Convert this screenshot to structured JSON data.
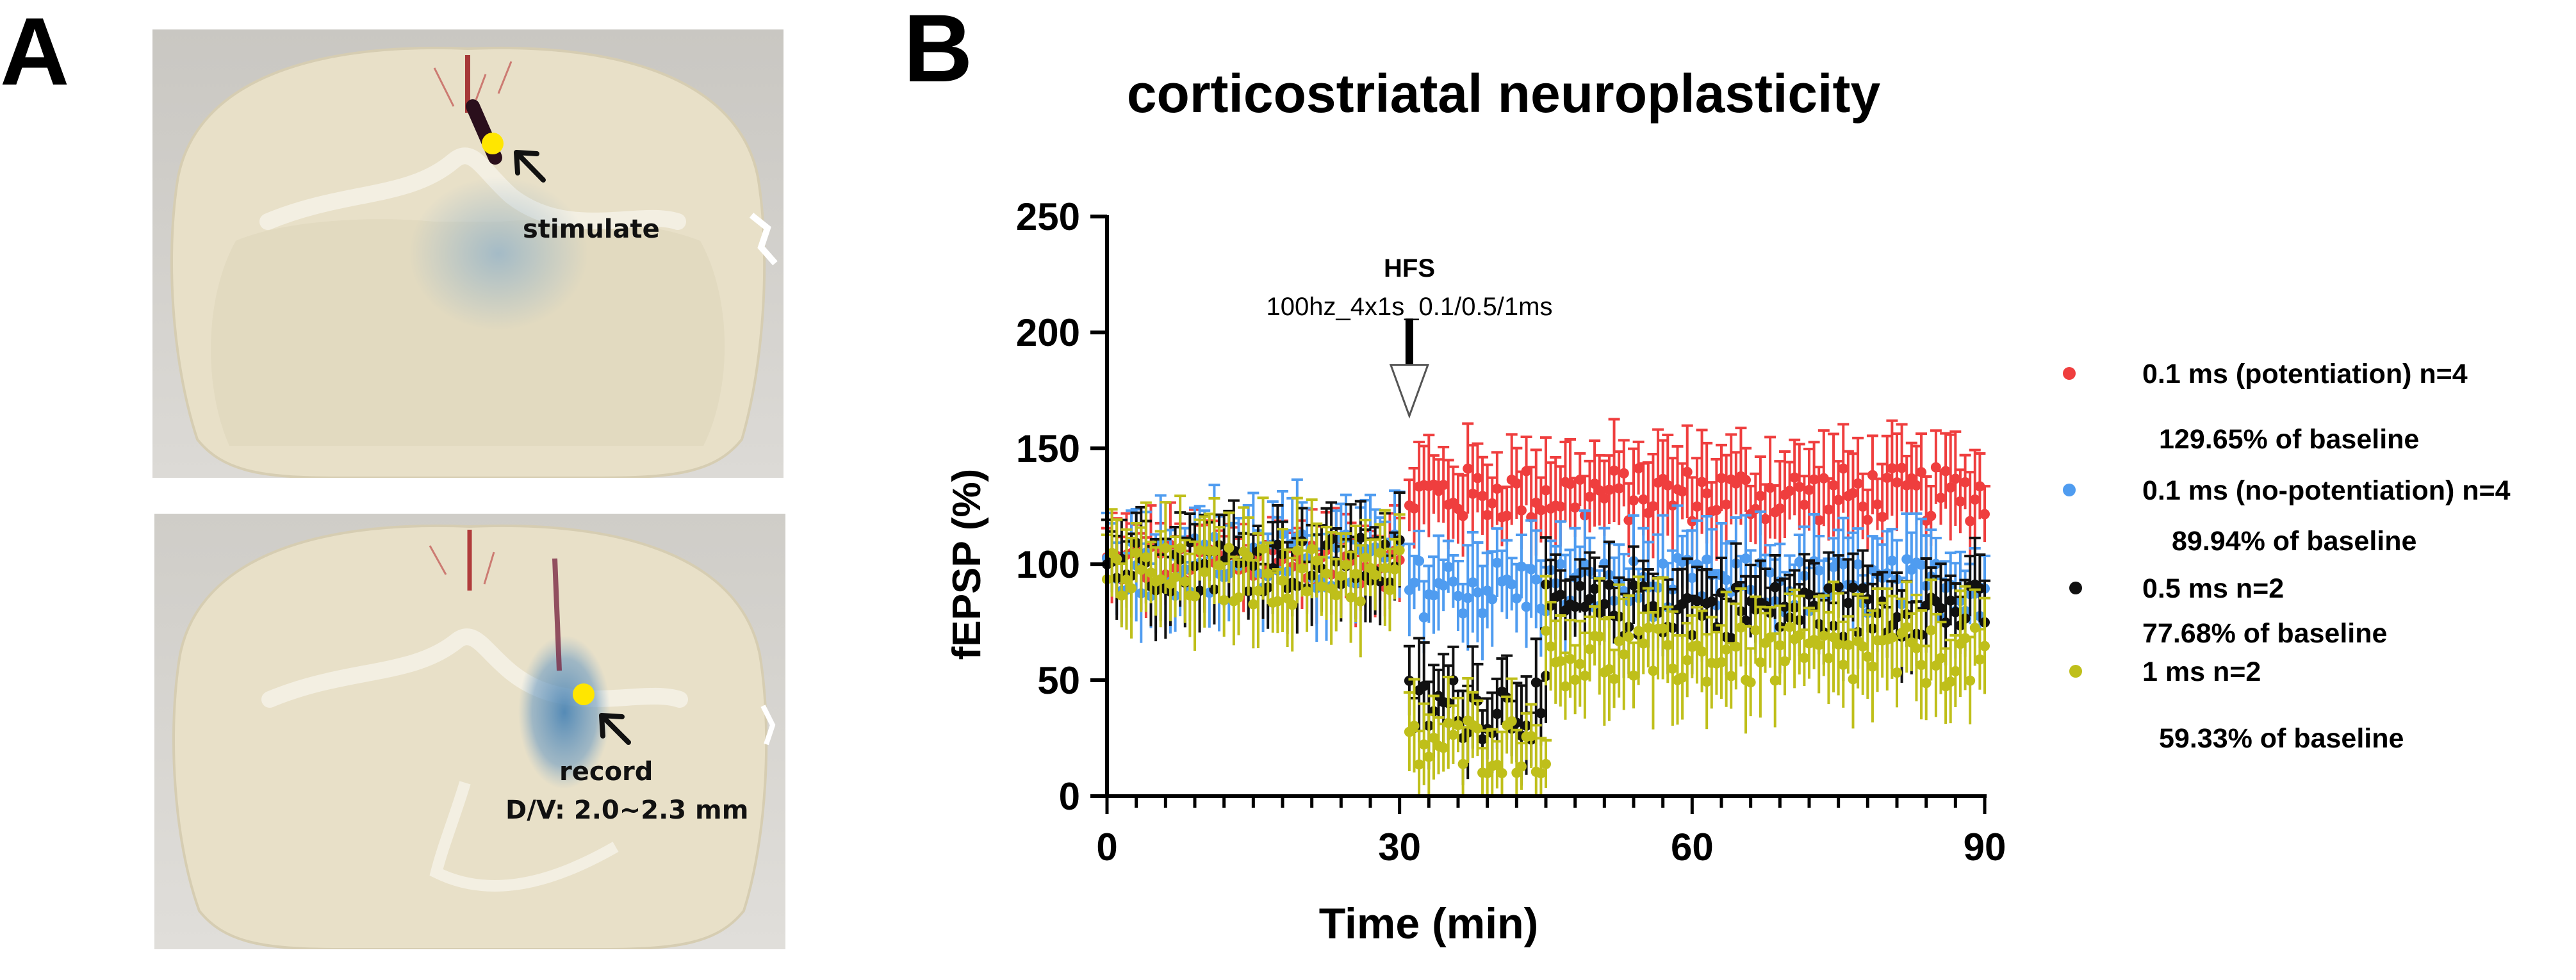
{
  "panel_a": {
    "letter": "A",
    "top_image": {
      "label": "stimulate"
    },
    "bottom_image": {
      "label_line1": "record",
      "label_line2": "D/V: 2.0~2.3 mm"
    }
  },
  "panel_b": {
    "letter": "B"
  },
  "colors": {
    "potentiation_01ms": "#ef3e3e",
    "no_potentiation_01ms": "#4f9cf0",
    "ms05": "#111111",
    "ms1": "#bfbf1a",
    "stim_site_marker": "#ffe600",
    "tissue": "#e7e0c8",
    "dye": "#5d8fb8"
  },
  "chart_data": {
    "type": "scatter",
    "title": "corticostriatal neuroplasticity",
    "xlabel": "Time (min)",
    "ylabel": "fEPSP (%)",
    "xlim": [
      0,
      90
    ],
    "ylim": [
      0,
      250
    ],
    "xticks": [
      0,
      30,
      60,
      90
    ],
    "yticks": [
      0,
      50,
      100,
      150,
      200,
      250
    ],
    "grid": false,
    "error_bars": true,
    "legend_position": "right",
    "annotation": {
      "title": "HFS",
      "detail": "100hz_4x1s_0.1/0.5/1ms",
      "x": 31
    },
    "series": [
      {
        "name": "0.1 ms (potentiation) n=4",
        "note": "129.65% of baseline",
        "color": "#ef3e3e",
        "segments": [
          {
            "from": 0,
            "to": 30,
            "mean": 100,
            "amp": 10,
            "err": 17
          },
          {
            "from": 31,
            "to": 90,
            "mean": 130,
            "amp": 12,
            "err": 20
          }
        ]
      },
      {
        "name": "0.1 ms (no-potentiation) n=4",
        "note": "89.94% of baseline",
        "color": "#4f9cf0",
        "segments": [
          {
            "from": 0,
            "to": 30,
            "mean": 100,
            "amp": 14,
            "err": 22
          },
          {
            "from": 31,
            "to": 90,
            "mean": 90,
            "amp": 13,
            "err": 20
          }
        ]
      },
      {
        "name": "0.5 ms n=2",
        "note": "77.68% of baseline",
        "color": "#111111",
        "segments": [
          {
            "from": 0,
            "to": 30,
            "mean": 100,
            "amp": 12,
            "err": 20
          },
          {
            "from": 31,
            "to": 45,
            "mean": 38,
            "amp": 14,
            "err": 20
          },
          {
            "from": 45,
            "to": 90,
            "mean": 80,
            "amp": 12,
            "err": 18
          }
        ]
      },
      {
        "name": "1 ms n=2",
        "note": "59.33% of baseline",
        "color": "#bfbf1a",
        "segments": [
          {
            "from": 0,
            "to": 30,
            "mean": 95,
            "amp": 13,
            "err": 22
          },
          {
            "from": 31,
            "to": 45,
            "mean": 22,
            "amp": 13,
            "err": 18
          },
          {
            "from": 45,
            "to": 90,
            "mean": 60,
            "amp": 13,
            "err": 22
          }
        ]
      }
    ]
  }
}
